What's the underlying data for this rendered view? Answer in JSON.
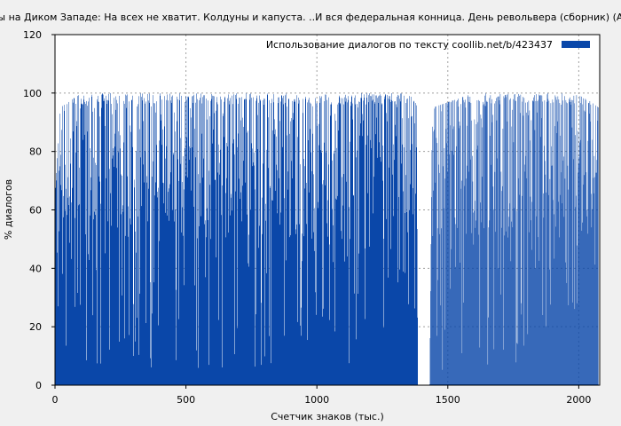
{
  "chart_data": {
    "type": "bar",
    "title": "…ды на Диком Западе: На всех не хватит. Колдуны и капуста. ..И вся федеральная конница. День револьвера (сборник) (Анд",
    "xlabel": "Счетчик знаков (тыс.)",
    "ylabel": "% диалогов",
    "xlim": [
      0,
      2080
    ],
    "ylim": [
      0,
      120
    ],
    "xticks": [
      0,
      500,
      1000,
      1500,
      2000
    ],
    "yticks": [
      0,
      20,
      40,
      60,
      80,
      100,
      120
    ],
    "grid": true,
    "legend_position": "top-right",
    "series": [
      {
        "name": "Использование диалогов по тексту  coollib.net/b/423437",
        "color": "#0a47a9",
        "segments": [
          {
            "x_start": 0,
            "x_end": 1385,
            "density": "dense"
          },
          {
            "x_start": 1430,
            "x_end": 2075,
            "density": "dense"
          }
        ],
        "envelope_values": [
          {
            "x": 0,
            "min": 10,
            "max": 65
          },
          {
            "x": 20,
            "min": 10,
            "max": 95
          },
          {
            "x": 100,
            "min": 5,
            "max": 100
          },
          {
            "x": 200,
            "min": 5,
            "max": 100
          },
          {
            "x": 400,
            "min": 5,
            "max": 100
          },
          {
            "x": 600,
            "min": 5,
            "max": 100
          },
          {
            "x": 800,
            "min": 5,
            "max": 100
          },
          {
            "x": 900,
            "min": 0,
            "max": 100
          },
          {
            "x": 1000,
            "min": 5,
            "max": 100
          },
          {
            "x": 1200,
            "min": 5,
            "max": 100
          },
          {
            "x": 1380,
            "min": 5,
            "max": 100
          },
          {
            "x": 1385,
            "min": 0,
            "max": 0
          },
          {
            "x": 1430,
            "min": 0,
            "max": 0
          },
          {
            "x": 1440,
            "min": 5,
            "max": 95
          },
          {
            "x": 1600,
            "min": 5,
            "max": 100
          },
          {
            "x": 1800,
            "min": 5,
            "max": 100
          },
          {
            "x": 2000,
            "min": 10,
            "max": 100
          },
          {
            "x": 2075,
            "min": 40,
            "max": 95
          }
        ]
      }
    ]
  }
}
